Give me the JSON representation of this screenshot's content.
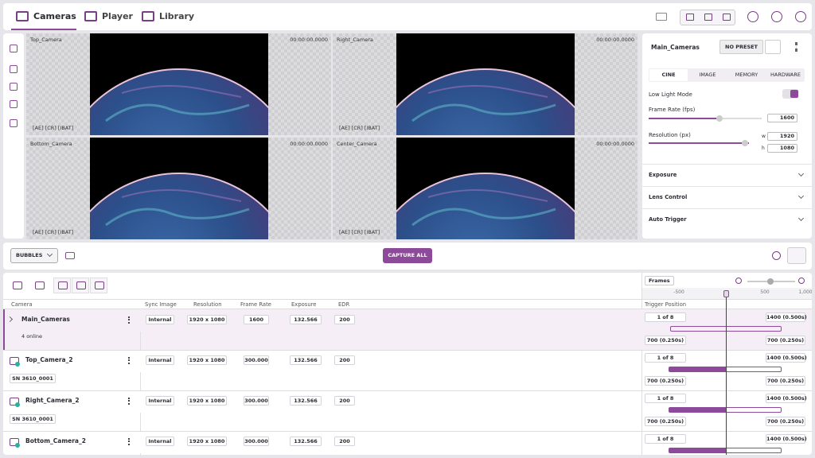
{
  "nav": {
    "tabs": [
      "Cameras",
      "Player",
      "Library"
    ]
  },
  "viewports": [
    {
      "name": "Top_Camera",
      "time": "00:00:00.0000",
      "flags": "[AE]  [CR]  [IBAT]"
    },
    {
      "name": "Right_Camera",
      "time": "00:00:00.0000",
      "flags": "[AE]  [CR]  [IBAT]"
    },
    {
      "name": "Bottom_Camera",
      "time": "00:00:00.0000",
      "flags": "[AE]  [CR]  [IBAT]"
    },
    {
      "name": "Center_Camera",
      "time": "00:00:00.0000",
      "flags": "[AE]  [CR]  [IBAT]"
    }
  ],
  "settings": {
    "camera": "Main_Cameras",
    "preset": "NO PRESET",
    "tabs": [
      "CINE",
      "IMAGE",
      "MEMORY",
      "HARDWARE"
    ],
    "low_light": "Low Light Mode",
    "frame_rate_label": "Frame Rate (fps)",
    "frame_rate": "1600",
    "resolution_label": "Resolution (px)",
    "w_label": "w",
    "h_label": "h",
    "width": "1920",
    "height": "1080",
    "sections": [
      "Exposure",
      "Lens Control",
      "Auto Trigger"
    ]
  },
  "toolbar": {
    "preset": "BUBBLES",
    "capture": "CAPTURE ALL"
  },
  "timeline": {
    "unit": "Frames",
    "ticks": [
      "-500",
      "500",
      "1,000"
    ]
  },
  "table": {
    "columns": [
      "Camera",
      "Sync Image",
      "Resolution",
      "Frame Rate",
      "Exposure",
      "EDR",
      "Trigger Position"
    ],
    "rows": [
      {
        "name": "Main_Cameras",
        "sub": "4 online",
        "sync": "Internal",
        "resolution": "1920 x 1080",
        "frame_rate": "1600",
        "exposure": "132.566",
        "edr": "200",
        "trigger": "1 of 8",
        "post": "1400 (0.500s)",
        "pre": "700 (0.250s)",
        "pre_right": "700 (0.250s)"
      },
      {
        "name": "Top_Camera_2",
        "sub": "SN 3610_0001",
        "sync": "Internal",
        "resolution": "1920 x 1080",
        "frame_rate": "300.000",
        "exposure": "132.566",
        "edr": "200",
        "trigger": "1 of 8",
        "post": "1400 (0.500s)",
        "pre": "700 (0.250s)",
        "pre_right": "700 (0.250s)"
      },
      {
        "name": "Right_Camera_2",
        "sub": "SN 3610_0001",
        "sync": "Internal",
        "resolution": "1920 x 1080",
        "frame_rate": "300.000",
        "exposure": "132.566",
        "edr": "200",
        "trigger": "1 of 8",
        "post": "1400 (0.500s)",
        "pre": "700 (0.250s)",
        "pre_right": "700 (0.250s)"
      },
      {
        "name": "Bottom_Camera_2",
        "sync": "Internal",
        "resolution": "1920 x 1080",
        "frame_rate": "300.000",
        "exposure": "132.566",
        "edr": "200",
        "trigger": "1 of 8",
        "post": "1400 (0.500s)"
      }
    ]
  }
}
